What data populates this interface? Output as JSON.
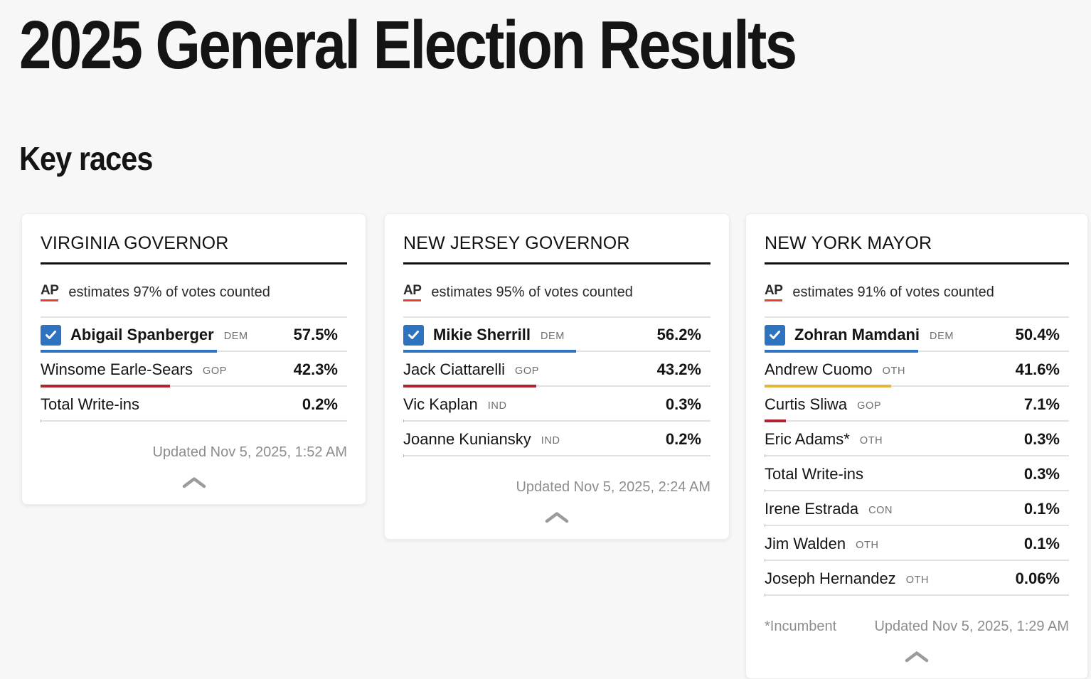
{
  "page": {
    "title": "2025 General Election Results",
    "section_title": "Key races"
  },
  "colors": {
    "dem_blue": "#2e73c0",
    "gop_red": "#b22231",
    "other_gold": "#e4b43f",
    "ap_red": "#e8402f",
    "track_gray": "#e1e1e1"
  },
  "chart_data": [
    {
      "type": "bar",
      "race_title": "VIRGINIA GOVERNOR",
      "ap_logo": "AP",
      "counted_text": "estimates 97% of votes counted",
      "updated_text": "Updated Nov 5, 2025, 1:52 AM",
      "incumbent_note": "",
      "xlim": [
        0,
        100
      ],
      "candidates": [
        {
          "name": "Abigail Spanberger",
          "party": "DEM",
          "pct": "57.5%",
          "pct_value": 57.5,
          "winner": true,
          "color_key": "dem_blue"
        },
        {
          "name": "Winsome Earle-Sears",
          "party": "GOP",
          "pct": "42.3%",
          "pct_value": 42.3,
          "winner": false,
          "color_key": "gop_red"
        },
        {
          "name": "Total Write-ins",
          "party": "",
          "pct": "0.2%",
          "pct_value": 0.2,
          "winner": false,
          "color_key": "other_gold"
        }
      ]
    },
    {
      "type": "bar",
      "race_title": "NEW JERSEY GOVERNOR",
      "ap_logo": "AP",
      "counted_text": "estimates 95% of votes counted",
      "updated_text": "Updated Nov 5, 2025, 2:24 AM",
      "incumbent_note": "",
      "xlim": [
        0,
        100
      ],
      "candidates": [
        {
          "name": "Mikie Sherrill",
          "party": "DEM",
          "pct": "56.2%",
          "pct_value": 56.2,
          "winner": true,
          "color_key": "dem_blue"
        },
        {
          "name": "Jack Ciattarelli",
          "party": "GOP",
          "pct": "43.2%",
          "pct_value": 43.2,
          "winner": false,
          "color_key": "gop_red"
        },
        {
          "name": "Vic Kaplan",
          "party": "IND",
          "pct": "0.3%",
          "pct_value": 0.3,
          "winner": false,
          "color_key": "other_gold"
        },
        {
          "name": "Joanne Kuniansky",
          "party": "IND",
          "pct": "0.2%",
          "pct_value": 0.2,
          "winner": false,
          "color_key": "other_gold"
        }
      ]
    },
    {
      "type": "bar",
      "race_title": "NEW YORK MAYOR",
      "ap_logo": "AP",
      "counted_text": "estimates 91% of votes counted",
      "updated_text": "Updated Nov 5, 2025, 1:29 AM",
      "incumbent_note": "*Incumbent",
      "xlim": [
        0,
        100
      ],
      "candidates": [
        {
          "name": "Zohran Mamdani",
          "party": "DEM",
          "pct": "50.4%",
          "pct_value": 50.4,
          "winner": true,
          "color_key": "dem_blue"
        },
        {
          "name": "Andrew Cuomo",
          "party": "OTH",
          "pct": "41.6%",
          "pct_value": 41.6,
          "winner": false,
          "color_key": "other_gold"
        },
        {
          "name": "Curtis Sliwa",
          "party": "GOP",
          "pct": "7.1%",
          "pct_value": 7.1,
          "winner": false,
          "color_key": "gop_red"
        },
        {
          "name": "Eric Adams*",
          "party": "OTH",
          "pct": "0.3%",
          "pct_value": 0.3,
          "winner": false,
          "color_key": "other_gold"
        },
        {
          "name": "Total Write-ins",
          "party": "",
          "pct": "0.3%",
          "pct_value": 0.3,
          "winner": false,
          "color_key": "other_gold"
        },
        {
          "name": "Irene Estrada",
          "party": "CON",
          "pct": "0.1%",
          "pct_value": 0.1,
          "winner": false,
          "color_key": "other_gold"
        },
        {
          "name": "Jim Walden",
          "party": "OTH",
          "pct": "0.1%",
          "pct_value": 0.1,
          "winner": false,
          "color_key": "other_gold"
        },
        {
          "name": "Joseph Hernandez",
          "party": "OTH",
          "pct": "0.06%",
          "pct_value": 0.06,
          "winner": false,
          "color_key": "other_gold"
        }
      ]
    }
  ]
}
